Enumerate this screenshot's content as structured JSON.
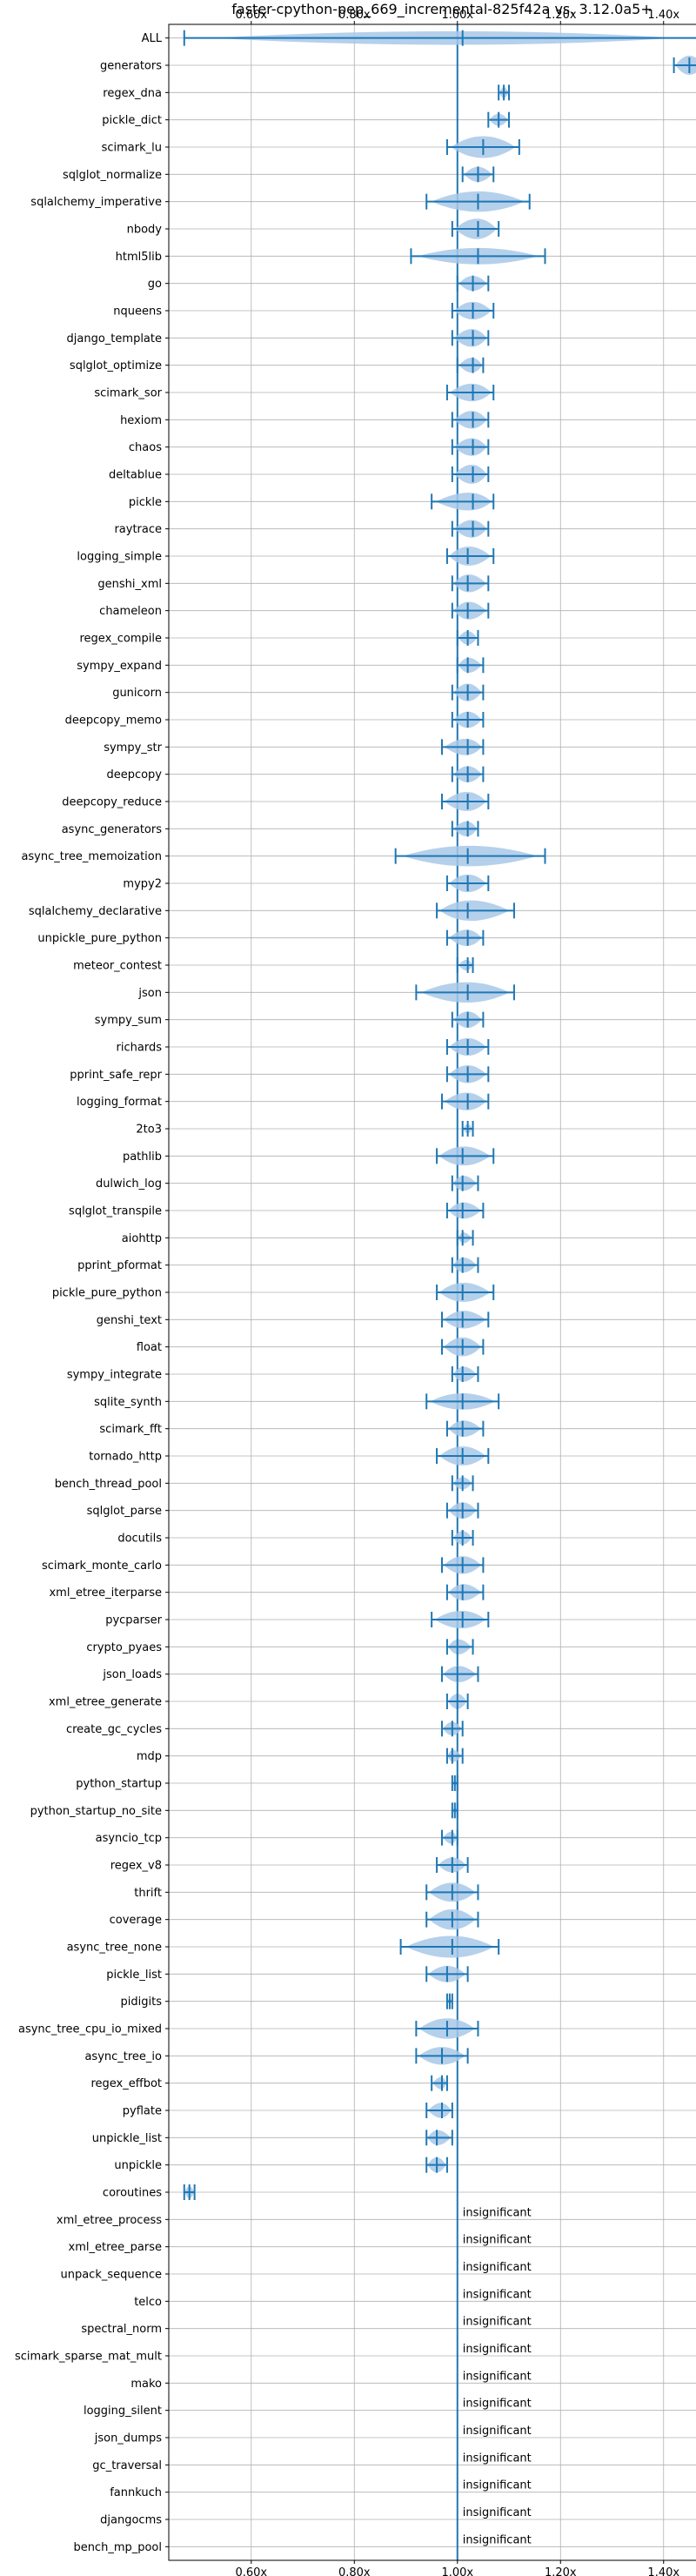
{
  "chart_data": {
    "type": "violin",
    "title": "faster-cpython-pep_669_incremental-825f42a vs. 3.12.0a5+",
    "x_ticks": [
      "0.60x",
      "0.80x",
      "1.00x",
      "1.20x",
      "1.40x"
    ],
    "x_tick_values": [
      0.6,
      0.8,
      1.0,
      1.2,
      1.4
    ],
    "xlim": [
      0.44,
      1.5
    ],
    "reference_line": 1.0,
    "grid": true,
    "colors": {
      "violin": "#a8c8e8",
      "whisker": "#1f77b4",
      "grid": "#b0b0b0"
    },
    "insignificant_label": "insignificant",
    "benchmarks": [
      {
        "name": "ALL",
        "median": 1.01,
        "min": 0.47,
        "max": 1.47,
        "width": 0.5
      },
      {
        "name": "generators",
        "median": 1.45,
        "min": 1.42,
        "max": 1.48,
        "width": 0.7
      },
      {
        "name": "regex_dna",
        "median": 1.09,
        "min": 1.08,
        "max": 1.1,
        "width": 0.4
      },
      {
        "name": "pickle_dict",
        "median": 1.08,
        "min": 1.06,
        "max": 1.1,
        "width": 0.45
      },
      {
        "name": "scimark_lu",
        "median": 1.05,
        "min": 0.98,
        "max": 1.12,
        "width": 0.8
      },
      {
        "name": "sqlglot_normalize",
        "median": 1.04,
        "min": 1.01,
        "max": 1.07,
        "width": 0.55
      },
      {
        "name": "sqlalchemy_imperative",
        "median": 1.04,
        "min": 0.94,
        "max": 1.14,
        "width": 0.75
      },
      {
        "name": "nbody",
        "median": 1.04,
        "min": 0.99,
        "max": 1.08,
        "width": 0.75
      },
      {
        "name": "html5lib",
        "median": 1.04,
        "min": 0.91,
        "max": 1.17,
        "width": 0.6
      },
      {
        "name": "go",
        "median": 1.03,
        "min": 1.0,
        "max": 1.06,
        "width": 0.55
      },
      {
        "name": "nqueens",
        "median": 1.03,
        "min": 0.99,
        "max": 1.07,
        "width": 0.65
      },
      {
        "name": "django_template",
        "median": 1.03,
        "min": 0.99,
        "max": 1.06,
        "width": 0.65
      },
      {
        "name": "sqlglot_optimize",
        "median": 1.03,
        "min": 1.0,
        "max": 1.05,
        "width": 0.55
      },
      {
        "name": "scimark_sor",
        "median": 1.03,
        "min": 0.98,
        "max": 1.07,
        "width": 0.65
      },
      {
        "name": "hexiom",
        "median": 1.03,
        "min": 0.99,
        "max": 1.06,
        "width": 0.65
      },
      {
        "name": "chaos",
        "median": 1.03,
        "min": 0.99,
        "max": 1.06,
        "width": 0.65
      },
      {
        "name": "deltablue",
        "median": 1.03,
        "min": 0.99,
        "max": 1.06,
        "width": 0.7
      },
      {
        "name": "pickle",
        "median": 1.03,
        "min": 0.95,
        "max": 1.07,
        "width": 0.65
      },
      {
        "name": "raytrace",
        "median": 1.03,
        "min": 0.99,
        "max": 1.06,
        "width": 0.65
      },
      {
        "name": "logging_simple",
        "median": 1.02,
        "min": 0.98,
        "max": 1.07,
        "width": 0.7
      },
      {
        "name": "genshi_xml",
        "median": 1.02,
        "min": 0.99,
        "max": 1.06,
        "width": 0.65
      },
      {
        "name": "chameleon",
        "median": 1.02,
        "min": 0.99,
        "max": 1.06,
        "width": 0.65
      },
      {
        "name": "regex_compile",
        "median": 1.02,
        "min": 1.0,
        "max": 1.04,
        "width": 0.5
      },
      {
        "name": "sympy_expand",
        "median": 1.02,
        "min": 1.0,
        "max": 1.05,
        "width": 0.55
      },
      {
        "name": "gunicorn",
        "median": 1.02,
        "min": 0.99,
        "max": 1.05,
        "width": 0.65
      },
      {
        "name": "deepcopy_memo",
        "median": 1.02,
        "min": 0.99,
        "max": 1.05,
        "width": 0.6
      },
      {
        "name": "sympy_str",
        "median": 1.02,
        "min": 0.97,
        "max": 1.05,
        "width": 0.6
      },
      {
        "name": "deepcopy",
        "median": 1.02,
        "min": 0.99,
        "max": 1.05,
        "width": 0.6
      },
      {
        "name": "deepcopy_reduce",
        "median": 1.02,
        "min": 0.97,
        "max": 1.06,
        "width": 0.7
      },
      {
        "name": "async_generators",
        "median": 1.02,
        "min": 0.99,
        "max": 1.04,
        "width": 0.55
      },
      {
        "name": "async_tree_memoization",
        "median": 1.02,
        "min": 0.88,
        "max": 1.17,
        "width": 0.75
      },
      {
        "name": "mypy2",
        "median": 1.02,
        "min": 0.98,
        "max": 1.06,
        "width": 0.65
      },
      {
        "name": "sqlalchemy_declarative",
        "median": 1.02,
        "min": 0.96,
        "max": 1.11,
        "width": 0.75
      },
      {
        "name": "unpickle_pure_python",
        "median": 1.02,
        "min": 0.98,
        "max": 1.05,
        "width": 0.6
      },
      {
        "name": "meteor_contest",
        "median": 1.02,
        "min": 1.0,
        "max": 1.03,
        "width": 0.4
      },
      {
        "name": "json",
        "median": 1.02,
        "min": 0.92,
        "max": 1.11,
        "width": 0.75
      },
      {
        "name": "sympy_sum",
        "median": 1.02,
        "min": 0.99,
        "max": 1.05,
        "width": 0.6
      },
      {
        "name": "richards",
        "median": 1.02,
        "min": 0.98,
        "max": 1.06,
        "width": 0.65
      },
      {
        "name": "pprint_safe_repr",
        "median": 1.02,
        "min": 0.98,
        "max": 1.06,
        "width": 0.65
      },
      {
        "name": "logging_format",
        "median": 1.02,
        "min": 0.97,
        "max": 1.06,
        "width": 0.65
      },
      {
        "name": "2to3",
        "median": 1.02,
        "min": 1.01,
        "max": 1.03,
        "width": 0.35
      },
      {
        "name": "pathlib",
        "median": 1.01,
        "min": 0.96,
        "max": 1.07,
        "width": 0.7
      },
      {
        "name": "dulwich_log",
        "median": 1.01,
        "min": 0.99,
        "max": 1.04,
        "width": 0.55
      },
      {
        "name": "sqlglot_transpile",
        "median": 1.01,
        "min": 0.98,
        "max": 1.05,
        "width": 0.6
      },
      {
        "name": "aiohttp",
        "median": 1.01,
        "min": 1.0,
        "max": 1.03,
        "width": 0.4
      },
      {
        "name": "pprint_pformat",
        "median": 1.01,
        "min": 0.99,
        "max": 1.04,
        "width": 0.55
      },
      {
        "name": "pickle_pure_python",
        "median": 1.01,
        "min": 0.96,
        "max": 1.07,
        "width": 0.7
      },
      {
        "name": "genshi_text",
        "median": 1.01,
        "min": 0.97,
        "max": 1.06,
        "width": 0.65
      },
      {
        "name": "float",
        "median": 1.01,
        "min": 0.97,
        "max": 1.05,
        "width": 0.7
      },
      {
        "name": "sympy_integrate",
        "median": 1.01,
        "min": 0.99,
        "max": 1.04,
        "width": 0.55
      },
      {
        "name": "sqlite_synth",
        "median": 1.01,
        "min": 0.94,
        "max": 1.08,
        "width": 0.6
      },
      {
        "name": "scimark_fft",
        "median": 1.01,
        "min": 0.98,
        "max": 1.05,
        "width": 0.6
      },
      {
        "name": "tornado_http",
        "median": 1.01,
        "min": 0.96,
        "max": 1.06,
        "width": 0.7
      },
      {
        "name": "bench_thread_pool",
        "median": 1.01,
        "min": 0.99,
        "max": 1.03,
        "width": 0.45
      },
      {
        "name": "sqlglot_parse",
        "median": 1.01,
        "min": 0.98,
        "max": 1.04,
        "width": 0.6
      },
      {
        "name": "docutils",
        "median": 1.01,
        "min": 0.99,
        "max": 1.03,
        "width": 0.5
      },
      {
        "name": "scimark_monte_carlo",
        "median": 1.01,
        "min": 0.97,
        "max": 1.05,
        "width": 0.65
      },
      {
        "name": "xml_etree_iterparse",
        "median": 1.01,
        "min": 0.98,
        "max": 1.05,
        "width": 0.6
      },
      {
        "name": "pycparser",
        "median": 1.01,
        "min": 0.95,
        "max": 1.06,
        "width": 0.65
      },
      {
        "name": "crypto_pyaes",
        "median": 1.0,
        "min": 0.98,
        "max": 1.03,
        "width": 0.55
      },
      {
        "name": "json_loads",
        "median": 1.0,
        "min": 0.97,
        "max": 1.04,
        "width": 0.6
      },
      {
        "name": "xml_etree_generate",
        "median": 1.0,
        "min": 0.98,
        "max": 1.02,
        "width": 0.55
      },
      {
        "name": "create_gc_cycles",
        "median": 0.99,
        "min": 0.97,
        "max": 1.01,
        "width": 0.5
      },
      {
        "name": "mdp",
        "median": 0.99,
        "min": 0.98,
        "max": 1.01,
        "width": 0.45
      },
      {
        "name": "python_startup",
        "median": 0.995,
        "min": 0.99,
        "max": 1.0,
        "width": 0.2
      },
      {
        "name": "python_startup_no_site",
        "median": 0.995,
        "min": 0.99,
        "max": 1.0,
        "width": 0.2
      },
      {
        "name": "asyncio_tcp",
        "median": 0.99,
        "min": 0.97,
        "max": 1.0,
        "width": 0.45
      },
      {
        "name": "regex_v8",
        "median": 0.99,
        "min": 0.96,
        "max": 1.02,
        "width": 0.55
      },
      {
        "name": "thrift",
        "median": 0.99,
        "min": 0.94,
        "max": 1.04,
        "width": 0.7
      },
      {
        "name": "coverage",
        "median": 0.99,
        "min": 0.94,
        "max": 1.04,
        "width": 0.75
      },
      {
        "name": "async_tree_none",
        "median": 0.99,
        "min": 0.89,
        "max": 1.08,
        "width": 0.8
      },
      {
        "name": "pickle_list",
        "median": 0.98,
        "min": 0.94,
        "max": 1.02,
        "width": 0.6
      },
      {
        "name": "pidigits",
        "median": 0.985,
        "min": 0.98,
        "max": 0.99,
        "width": 0.2
      },
      {
        "name": "async_tree_cpu_io_mixed",
        "median": 0.98,
        "min": 0.92,
        "max": 1.04,
        "width": 0.75
      },
      {
        "name": "async_tree_io",
        "median": 0.97,
        "min": 0.92,
        "max": 1.02,
        "width": 0.65
      },
      {
        "name": "regex_effbot",
        "median": 0.97,
        "min": 0.95,
        "max": 0.98,
        "width": 0.45
      },
      {
        "name": "pyflate",
        "median": 0.97,
        "min": 0.94,
        "max": 0.99,
        "width": 0.55
      },
      {
        "name": "unpickle_list",
        "median": 0.96,
        "min": 0.94,
        "max": 0.99,
        "width": 0.55
      },
      {
        "name": "unpickle",
        "median": 0.96,
        "min": 0.94,
        "max": 0.98,
        "width": 0.55
      },
      {
        "name": "coroutines",
        "median": 0.48,
        "min": 0.47,
        "max": 0.49,
        "width": 0.45
      },
      {
        "name": "xml_etree_process",
        "insignificant": true
      },
      {
        "name": "xml_etree_parse",
        "insignificant": true
      },
      {
        "name": "unpack_sequence",
        "insignificant": true
      },
      {
        "name": "telco",
        "insignificant": true
      },
      {
        "name": "spectral_norm",
        "insignificant": true
      },
      {
        "name": "scimark_sparse_mat_mult",
        "insignificant": true
      },
      {
        "name": "mako",
        "insignificant": true
      },
      {
        "name": "logging_silent",
        "insignificant": true
      },
      {
        "name": "json_dumps",
        "insignificant": true
      },
      {
        "name": "gc_traversal",
        "insignificant": true
      },
      {
        "name": "fannkuch",
        "insignificant": true
      },
      {
        "name": "djangocms",
        "insignificant": true
      },
      {
        "name": "bench_mp_pool",
        "insignificant": true
      }
    ]
  }
}
